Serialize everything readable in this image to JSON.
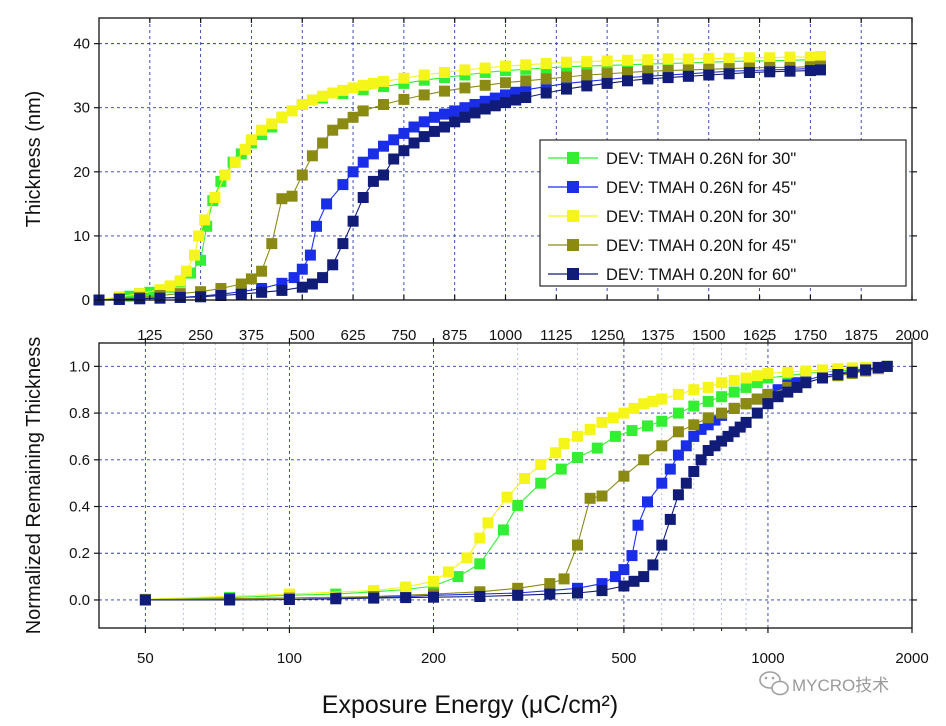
{
  "watermark": {
    "text": "MYCRO技术",
    "icon": "wechat-icon"
  },
  "x_axis_title": "Exposure Energy (μC/cm²)",
  "chart_data": [
    {
      "id": "top",
      "type": "line",
      "x_scale": "linear",
      "xlim": [
        0,
        2000
      ],
      "ylim": [
        0,
        44
      ],
      "ylabel": "Thickness (nm)",
      "x_ticks": [
        125,
        250,
        375,
        500,
        625,
        750,
        875,
        1000,
        1125,
        1250,
        1375,
        1500,
        1625,
        1750,
        1875,
        2000
      ],
      "x_tick_labels": [
        "125",
        "250",
        "375",
        "500",
        "625",
        "750",
        "875",
        "1000",
        "1125",
        "1250",
        "1375",
        "1500",
        "1625",
        "1750",
        "1875",
        "2000"
      ],
      "y_ticks": [
        0,
        10,
        20,
        30,
        40
      ],
      "y_tick_labels": [
        "0",
        "10",
        "20",
        "30",
        "40"
      ],
      "grid": true,
      "legend_position": "right-middle",
      "series": [
        {
          "name": "DEV: TMAH 0.26N  for 30\"",
          "color": "#33ee33",
          "x": [
            0,
            50,
            75,
            100,
            125,
            150,
            175,
            200,
            225,
            250,
            265,
            280,
            300,
            330,
            350,
            375,
            400,
            425,
            450,
            500,
            550,
            600,
            650,
            700,
            750,
            800,
            850,
            900,
            950,
            1000,
            1050,
            1100,
            1150,
            1200,
            1250,
            1300,
            1350,
            1400,
            1450,
            1500,
            1550,
            1600,
            1650,
            1700,
            1750,
            1775
          ],
          "y": [
            0,
            0.3,
            0.6,
            1.0,
            1.2,
            1.5,
            2.0,
            2.8,
            4.2,
            6.2,
            11.5,
            15.5,
            18.5,
            21.5,
            22.8,
            24.5,
            25.8,
            27.0,
            28.5,
            30.5,
            31.5,
            32.2,
            32.8,
            33.3,
            33.8,
            34.3,
            34.7,
            35.1,
            35.5,
            35.8,
            36.0,
            36.2,
            36.4,
            36.5,
            36.6,
            36.7,
            36.8,
            36.9,
            37.0,
            37.1,
            37.2,
            37.3,
            37.3,
            37.4,
            37.5,
            37.5
          ]
        },
        {
          "name": "DEV: TMAH 0.26N  for 45\"",
          "color": "#1a2ee8",
          "x": [
            0,
            50,
            100,
            150,
            200,
            250,
            300,
            350,
            400,
            450,
            480,
            500,
            520,
            535,
            560,
            600,
            625,
            650,
            675,
            700,
            725,
            750,
            775,
            800,
            825,
            850,
            875,
            900,
            925,
            950,
            975,
            1000,
            1025,
            1050,
            1100,
            1150,
            1200,
            1250,
            1300,
            1350,
            1400,
            1450,
            1500,
            1550,
            1600,
            1650,
            1700,
            1750,
            1775
          ],
          "y": [
            0,
            0.1,
            0.2,
            0.3,
            0.4,
            0.6,
            0.9,
            1.3,
            1.8,
            2.6,
            3.5,
            4.8,
            7.0,
            11.5,
            15.0,
            18.0,
            20.0,
            21.5,
            22.8,
            24.0,
            25.0,
            26.0,
            27.0,
            27.8,
            28.5,
            29.0,
            29.5,
            30.0,
            30.5,
            31.0,
            31.5,
            32.0,
            32.4,
            32.8,
            33.3,
            33.8,
            34.1,
            34.4,
            34.7,
            34.9,
            35.1,
            35.3,
            35.5,
            35.7,
            35.8,
            35.9,
            36.0,
            36.1,
            36.2
          ]
        },
        {
          "name": "DEV: TMAH 0.20N  for 30\"",
          "color": "#f5f51a",
          "x": [
            0,
            50,
            100,
            150,
            175,
            200,
            215,
            235,
            245,
            260,
            285,
            310,
            335,
            360,
            375,
            400,
            425,
            450,
            475,
            500,
            525,
            550,
            575,
            600,
            625,
            650,
            675,
            700,
            750,
            800,
            850,
            900,
            950,
            1000,
            1050,
            1100,
            1150,
            1200,
            1250,
            1300,
            1350,
            1400,
            1450,
            1500,
            1550,
            1600,
            1650,
            1700,
            1750,
            1775
          ],
          "y": [
            0,
            0.5,
            1.0,
            1.6,
            2.2,
            3.0,
            4.5,
            7.0,
            10.0,
            12.5,
            16.0,
            19.5,
            21.5,
            23.5,
            25.0,
            26.5,
            27.5,
            28.5,
            29.5,
            30.5,
            31.2,
            31.8,
            32.3,
            32.7,
            33.1,
            33.5,
            33.8,
            34.1,
            34.6,
            35.1,
            35.5,
            35.9,
            36.2,
            36.5,
            36.7,
            36.9,
            37.1,
            37.2,
            37.3,
            37.4,
            37.5,
            37.6,
            37.6,
            37.7,
            37.7,
            37.8,
            37.8,
            37.9,
            37.9,
            38.0
          ]
        },
        {
          "name": "DEV: TMAH 0.20N  for 45\"",
          "color": "#8b8b14",
          "x": [
            0,
            50,
            100,
            150,
            200,
            250,
            300,
            350,
            375,
            400,
            425,
            450,
            475,
            500,
            525,
            550,
            575,
            600,
            625,
            650,
            700,
            750,
            800,
            850,
            900,
            950,
            1000,
            1050,
            1100,
            1150,
            1200,
            1250,
            1300,
            1350,
            1400,
            1450,
            1500,
            1550,
            1600,
            1650,
            1700,
            1750,
            1775
          ],
          "y": [
            0,
            0.2,
            0.4,
            0.7,
            1.0,
            1.3,
            1.8,
            2.5,
            3.3,
            4.5,
            8.8,
            15.8,
            16.2,
            19.5,
            22.5,
            24.5,
            26.5,
            27.5,
            28.5,
            29.5,
            30.5,
            31.3,
            32.0,
            32.6,
            33.1,
            33.5,
            33.9,
            34.2,
            34.5,
            34.8,
            35.1,
            35.3,
            35.5,
            35.7,
            35.8,
            35.9,
            36.0,
            36.1,
            36.2,
            36.3,
            36.3,
            36.4,
            36.5
          ]
        },
        {
          "name": "DEV: TMAH 0.20N  for 60\"",
          "color": "#101c78",
          "x": [
            0,
            50,
            100,
            150,
            200,
            250,
            300,
            350,
            400,
            450,
            500,
            525,
            550,
            575,
            600,
            625,
            650,
            675,
            700,
            725,
            750,
            775,
            800,
            825,
            850,
            875,
            900,
            925,
            950,
            975,
            1000,
            1025,
            1050,
            1100,
            1150,
            1200,
            1250,
            1300,
            1350,
            1400,
            1450,
            1500,
            1550,
            1600,
            1650,
            1700,
            1750,
            1775
          ],
          "y": [
            0,
            0.1,
            0.2,
            0.3,
            0.4,
            0.5,
            0.7,
            0.9,
            1.2,
            1.5,
            2.0,
            2.5,
            3.5,
            5.5,
            8.8,
            12.3,
            16.0,
            18.5,
            19.5,
            22.0,
            23.3,
            24.5,
            25.5,
            26.3,
            27.0,
            27.8,
            28.5,
            29.2,
            29.8,
            30.3,
            30.8,
            31.2,
            31.6,
            32.3,
            32.9,
            33.4,
            33.8,
            34.2,
            34.5,
            34.7,
            34.9,
            35.1,
            35.3,
            35.5,
            35.6,
            35.7,
            35.8,
            35.9
          ]
        }
      ]
    },
    {
      "id": "bottom",
      "type": "line",
      "x_scale": "log",
      "xlim": [
        40,
        2000
      ],
      "ylim": [
        -0.12,
        1.1
      ],
      "ylabel": "Normalized Remaining Thickness",
      "x_ticks": [
        50,
        100,
        200,
        500,
        1000,
        2000
      ],
      "x_tick_labels": [
        "50",
        "100",
        "200",
        "500",
        "1000",
        "2000"
      ],
      "x_minor_ticks": [
        60,
        70,
        80,
        90,
        300,
        400,
        600,
        700,
        800,
        900
      ],
      "y_ticks": [
        0.0,
        0.2,
        0.4,
        0.6,
        0.8,
        1.0
      ],
      "y_tick_labels": [
        "0.0",
        "0.2",
        "0.4",
        "0.6",
        "0.8",
        "1.0"
      ],
      "grid": true,
      "series": [
        {
          "name": "DEV: TMAH 0.26N  for 30\"",
          "color": "#33ee33",
          "x": [
            50,
            75,
            100,
            125,
            150,
            175,
            200,
            225,
            250,
            280,
            300,
            335,
            370,
            400,
            440,
            480,
            520,
            560,
            600,
            650,
            700,
            750,
            800,
            850,
            900,
            950,
            1000,
            1100,
            1200,
            1300,
            1400,
            1500,
            1600,
            1700,
            1775
          ],
          "y": [
            0.003,
            0.01,
            0.02,
            0.025,
            0.035,
            0.045,
            0.06,
            0.1,
            0.155,
            0.3,
            0.405,
            0.5,
            0.56,
            0.61,
            0.65,
            0.7,
            0.725,
            0.745,
            0.765,
            0.8,
            0.83,
            0.85,
            0.87,
            0.89,
            0.91,
            0.93,
            0.95,
            0.96,
            0.97,
            0.975,
            0.98,
            0.985,
            0.99,
            0.995,
            1.0
          ]
        },
        {
          "name": "DEV: TMAH 0.26N  for 45\"",
          "color": "#1a2ee8",
          "x": [
            50,
            75,
            100,
            125,
            150,
            175,
            200,
            250,
            300,
            350,
            400,
            450,
            480,
            500,
            520,
            535,
            560,
            600,
            625,
            650,
            675,
            700,
            725,
            750,
            775,
            800,
            850,
            900,
            950,
            1000,
            1050,
            1100,
            1150,
            1200,
            1300,
            1400,
            1500,
            1600,
            1700,
            1775
          ],
          "y": [
            0.0,
            0.005,
            0.008,
            0.01,
            0.012,
            0.015,
            0.02,
            0.025,
            0.03,
            0.04,
            0.05,
            0.07,
            0.1,
            0.13,
            0.19,
            0.32,
            0.42,
            0.5,
            0.56,
            0.62,
            0.66,
            0.7,
            0.73,
            0.75,
            0.77,
            0.79,
            0.82,
            0.84,
            0.86,
            0.88,
            0.9,
            0.92,
            0.93,
            0.94,
            0.96,
            0.97,
            0.98,
            0.99,
            0.995,
            1.0
          ]
        },
        {
          "name": "DEV: TMAH 0.20N  for 30\"",
          "color": "#f5f51a",
          "x": [
            50,
            100,
            150,
            175,
            200,
            215,
            235,
            250,
            260,
            285,
            310,
            335,
            360,
            375,
            400,
            425,
            450,
            475,
            500,
            525,
            550,
            575,
            600,
            650,
            700,
            750,
            800,
            850,
            900,
            950,
            1000,
            1100,
            1200,
            1300,
            1400,
            1500,
            1600,
            1700,
            1775
          ],
          "y": [
            0.003,
            0.025,
            0.04,
            0.055,
            0.08,
            0.12,
            0.18,
            0.265,
            0.33,
            0.44,
            0.52,
            0.58,
            0.63,
            0.67,
            0.7,
            0.73,
            0.76,
            0.78,
            0.8,
            0.82,
            0.84,
            0.85,
            0.86,
            0.88,
            0.9,
            0.91,
            0.93,
            0.94,
            0.95,
            0.96,
            0.97,
            0.975,
            0.98,
            0.985,
            0.99,
            0.993,
            0.995,
            0.998,
            1.0
          ]
        },
        {
          "name": "DEV: TMAH 0.20N  for 45\"",
          "color": "#8b8b14",
          "x": [
            50,
            100,
            150,
            200,
            250,
            300,
            350,
            375,
            400,
            425,
            450,
            500,
            550,
            600,
            650,
            700,
            750,
            800,
            850,
            900,
            950,
            1000,
            1100,
            1200,
            1300,
            1400,
            1500,
            1600,
            1700,
            1775
          ],
          "y": [
            0.002,
            0.008,
            0.015,
            0.025,
            0.035,
            0.05,
            0.07,
            0.09,
            0.235,
            0.435,
            0.445,
            0.53,
            0.6,
            0.66,
            0.72,
            0.75,
            0.78,
            0.8,
            0.82,
            0.84,
            0.86,
            0.88,
            0.91,
            0.93,
            0.95,
            0.96,
            0.97,
            0.98,
            0.99,
            1.0
          ]
        },
        {
          "name": "DEV: TMAH 0.20N  for 60\"",
          "color": "#101c78",
          "x": [
            50,
            75,
            100,
            125,
            150,
            175,
            200,
            250,
            300,
            350,
            400,
            450,
            500,
            525,
            550,
            575,
            600,
            625,
            650,
            675,
            700,
            725,
            750,
            775,
            800,
            825,
            850,
            875,
            900,
            950,
            1000,
            1050,
            1100,
            1150,
            1200,
            1300,
            1400,
            1500,
            1600,
            1700,
            1775
          ],
          "y": [
            0.0,
            0.0,
            0.002,
            0.005,
            0.008,
            0.01,
            0.012,
            0.015,
            0.02,
            0.025,
            0.03,
            0.04,
            0.06,
            0.08,
            0.1,
            0.15,
            0.235,
            0.345,
            0.45,
            0.5,
            0.55,
            0.6,
            0.64,
            0.66,
            0.68,
            0.7,
            0.72,
            0.74,
            0.76,
            0.8,
            0.84,
            0.87,
            0.89,
            0.91,
            0.93,
            0.95,
            0.965,
            0.975,
            0.985,
            0.995,
            1.0
          ]
        }
      ]
    }
  ]
}
